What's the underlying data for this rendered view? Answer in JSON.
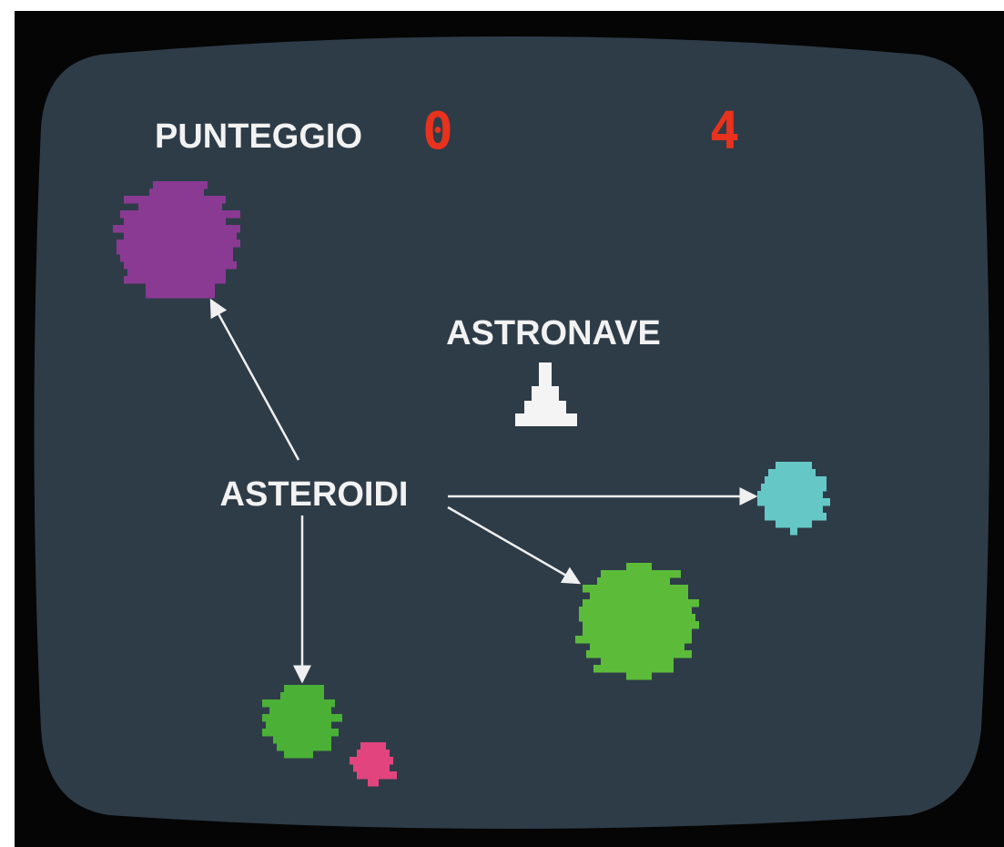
{
  "hud": {
    "score_label": "PUNTEGGIO",
    "score": 0,
    "lives": 4
  },
  "labels": {
    "ship": "ASTRONAVE",
    "asteroids": "ASTEROIDI"
  }
}
